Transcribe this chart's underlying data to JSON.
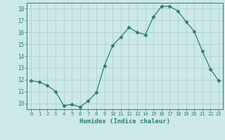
{
  "x": [
    0,
    1,
    2,
    3,
    4,
    5,
    6,
    7,
    8,
    9,
    10,
    11,
    12,
    13,
    14,
    15,
    16,
    17,
    18,
    19,
    20,
    21,
    22,
    23
  ],
  "y": [
    11.9,
    11.8,
    11.5,
    11.0,
    9.8,
    9.9,
    9.7,
    10.2,
    10.9,
    13.2,
    14.9,
    15.6,
    16.4,
    16.0,
    15.8,
    17.3,
    18.2,
    18.2,
    17.8,
    16.9,
    16.1,
    14.4,
    12.9,
    11.9
  ],
  "xlabel": "Humidex (Indice chaleur)",
  "xlim": [
    -0.5,
    23.5
  ],
  "ylim": [
    9.5,
    18.5
  ],
  "yticks": [
    10,
    11,
    12,
    13,
    14,
    15,
    16,
    17,
    18
  ],
  "xticks": [
    0,
    1,
    2,
    3,
    4,
    5,
    6,
    7,
    8,
    9,
    10,
    11,
    12,
    13,
    14,
    15,
    16,
    17,
    18,
    19,
    20,
    21,
    22,
    23
  ],
  "line_color": "#2e7d6e",
  "marker": "D",
  "marker_size": 2.5,
  "bg_color": "#cce8e8",
  "grid_color": "#b0d0d0",
  "axis_color": "#2e7d6e",
  "tick_color": "#2e7d6e",
  "label_color": "#2e7d6e"
}
